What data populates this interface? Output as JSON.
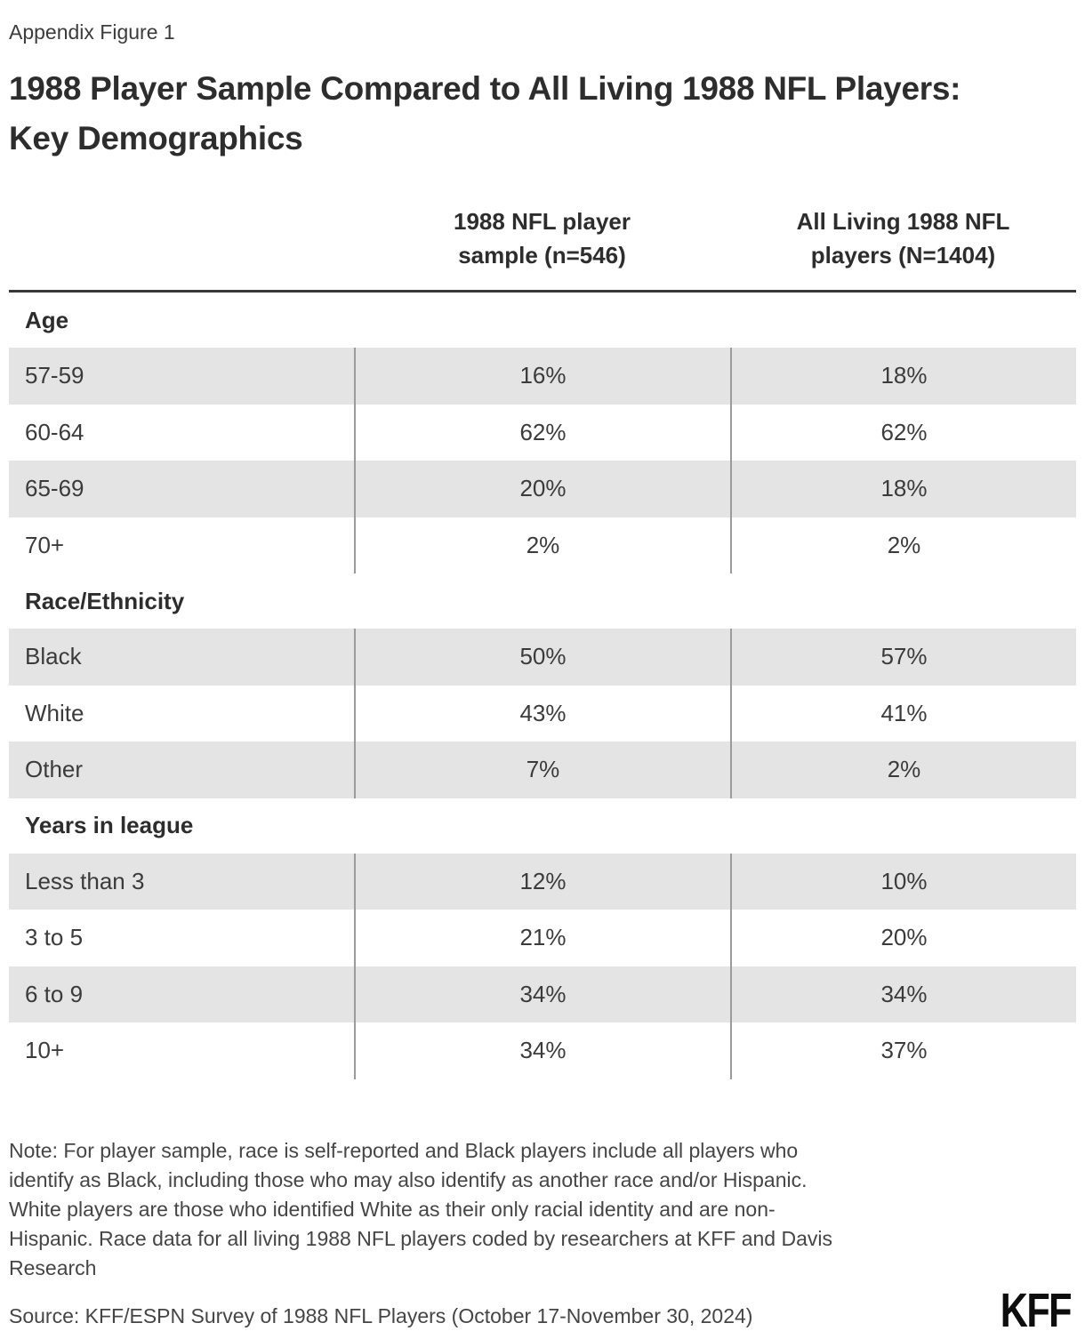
{
  "figure_label": "Appendix Figure 1",
  "title_lines": [
    "1988 Player Sample Compared to All Living 1988 NFL Players:",
    "Key Demographics"
  ],
  "chart_data": {
    "type": "table",
    "columns": [
      {
        "label": "1988 NFL player sample (n=546)",
        "label_lines": [
          "1988 NFL player",
          "sample (n=546)"
        ]
      },
      {
        "label": "All Living 1988 NFL players (N=1404)",
        "label_lines": [
          "All Living 1988 NFL",
          "players (N=1404)"
        ]
      }
    ],
    "sections": [
      {
        "header": "Age",
        "rows": [
          {
            "label": "57-59",
            "values": [
              "16%",
              "18%"
            ]
          },
          {
            "label": "60-64",
            "values": [
              "62%",
              "62%"
            ]
          },
          {
            "label": "65-69",
            "values": [
              "20%",
              "18%"
            ]
          },
          {
            "label": "70+",
            "values": [
              "2%",
              "2%"
            ]
          }
        ]
      },
      {
        "header": "Race/Ethnicity",
        "rows": [
          {
            "label": "Black",
            "values": [
              "50%",
              "57%"
            ]
          },
          {
            "label": "White",
            "values": [
              "43%",
              "41%"
            ]
          },
          {
            "label": "Other",
            "values": [
              "7%",
              "2%"
            ]
          }
        ]
      },
      {
        "header": "Years in league",
        "rows": [
          {
            "label": "Less than 3",
            "values": [
              "12%",
              "10%"
            ]
          },
          {
            "label": "3 to 5",
            "values": [
              "21%",
              "20%"
            ]
          },
          {
            "label": "6 to 9",
            "values": [
              "34%",
              "34%"
            ]
          },
          {
            "label": "10+",
            "values": [
              "34%",
              "37%"
            ]
          }
        ]
      }
    ]
  },
  "note_lines": [
    "Note: For player sample, race is self-reported and Black players include all players who",
    "identify as Black, including those who may also identify as another race and/or Hispanic.",
    "White players are those who identified White as their only racial identity and are non-",
    "Hispanic. Race data for all living 1988 NFL players coded by researchers at KFF and Davis",
    "Research"
  ],
  "source": "Source: KFF/ESPN Survey of 1988 NFL Players (October 17-November 30, 2024)",
  "logo_text": "KFF",
  "colors": {
    "stripe": "#e4e4e4",
    "divider": "#9b9b9b",
    "rule": "#383838",
    "body_text": "#3b3b3b",
    "heading_text": "#2d2d2d",
    "logo": "#0d0d0d",
    "background": "#ffffff"
  }
}
